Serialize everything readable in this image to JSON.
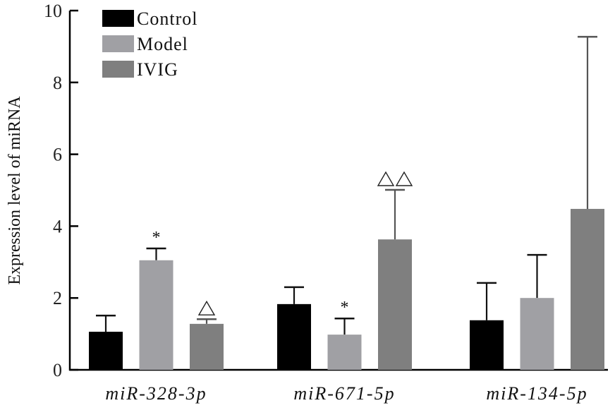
{
  "chart_data": {
    "type": "bar",
    "title": "",
    "xlabel": "",
    "ylabel": "Expression level of miRNA",
    "ylim": [
      0,
      10
    ],
    "yticks": [
      0,
      2,
      4,
      6,
      8,
      10
    ],
    "ytick_labels": [
      "0",
      "2",
      "4",
      "6",
      "8",
      "10"
    ],
    "categories": [
      "miR-328-3p",
      "miR-671-5p",
      "miR-134-5p"
    ],
    "legend_position": "top-left",
    "grid": false,
    "series": [
      {
        "name": "Control",
        "color": "#000000",
        "values": [
          1.06,
          1.83,
          1.38
        ],
        "error_upper": [
          1.51,
          2.3,
          2.42
        ],
        "annotations": [
          "",
          "",
          ""
        ]
      },
      {
        "name": "Model",
        "color": "#a0a0a4",
        "values": [
          3.05,
          0.98,
          2.0
        ],
        "error_upper": [
          3.38,
          1.43,
          3.2
        ],
        "annotations": [
          "*",
          "*",
          ""
        ]
      },
      {
        "name": "IVIG",
        "color": "#7f7f7f",
        "values": [
          1.28,
          3.63,
          4.48
        ],
        "error_upper": [
          1.41,
          5.01,
          9.27
        ],
        "annotations": [
          "△",
          "△△",
          ""
        ]
      }
    ]
  }
}
